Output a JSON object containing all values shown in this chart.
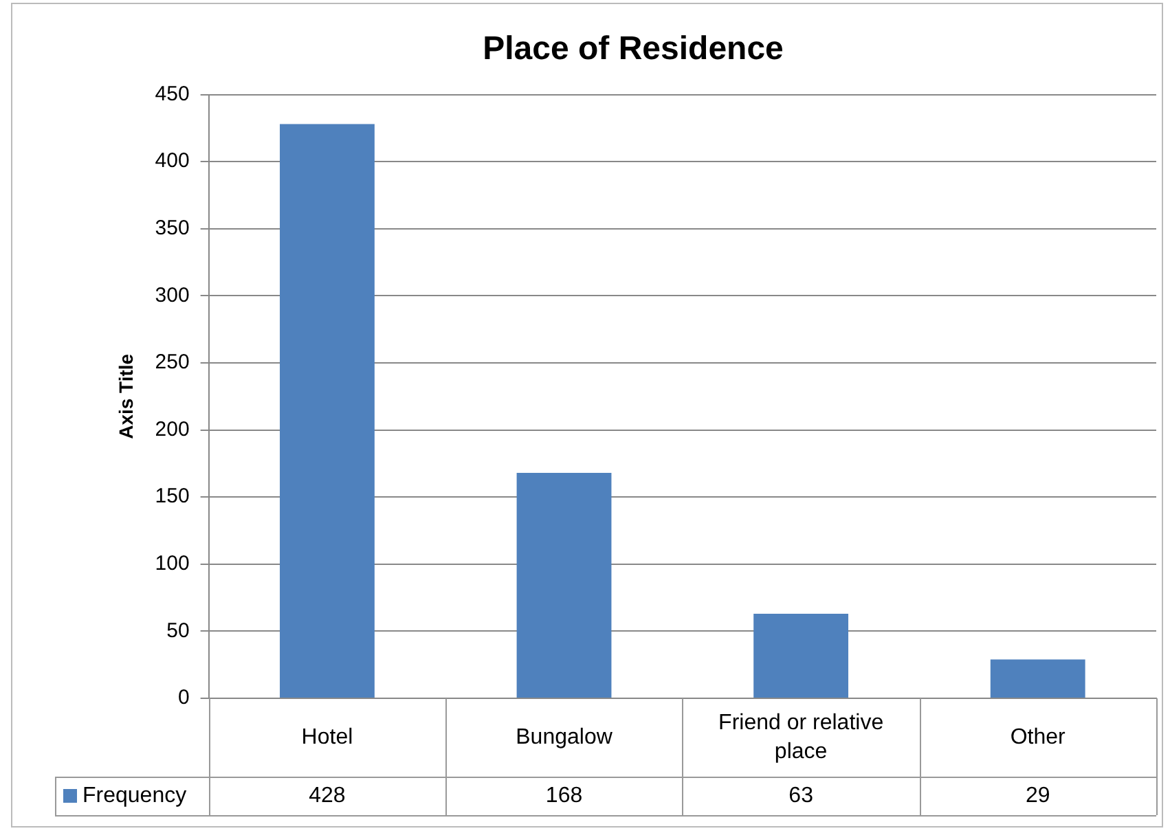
{
  "chart_data": {
    "type": "bar",
    "title": "Place of Residence",
    "ylabel": "Axis Title",
    "categories": [
      "Hotel",
      "Bungalow",
      "Friend or relative place",
      "Other"
    ],
    "series": [
      {
        "name": "Frequency",
        "color": "#4f81bd",
        "values": [
          428,
          168,
          63,
          29
        ]
      }
    ],
    "ylim": [
      0,
      450
    ],
    "yticks": [
      0,
      50,
      100,
      150,
      200,
      250,
      300,
      350,
      400,
      450
    ],
    "grid": "y",
    "legend": "bottom left",
    "data_labels": true
  }
}
